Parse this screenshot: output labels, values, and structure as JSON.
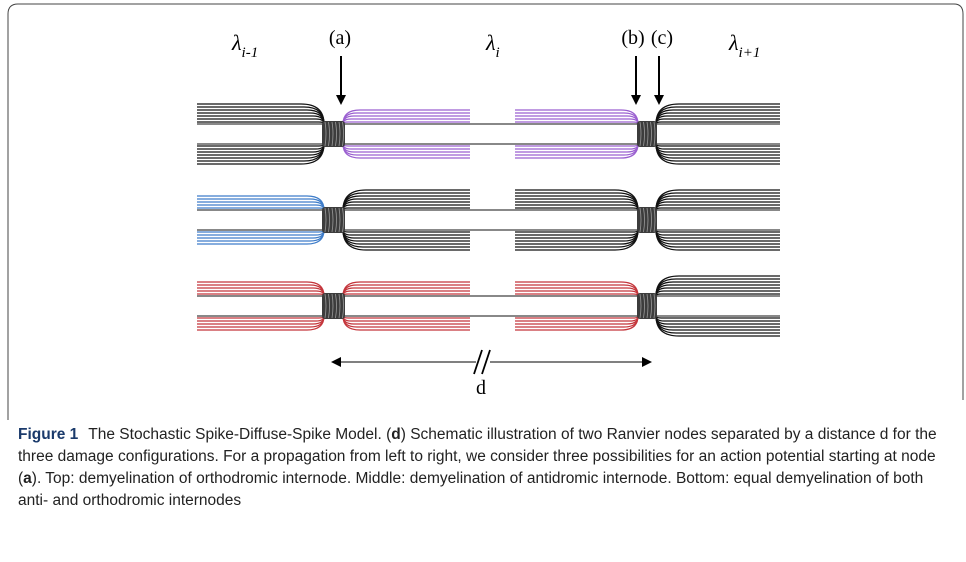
{
  "figure": {
    "node_labels": [
      "(a)",
      "(b)",
      "(c)"
    ],
    "lambdas": [
      {
        "symbol": "λ",
        "subscript": "i-1"
      },
      {
        "symbol": "λ",
        "subscript": "i"
      },
      {
        "symbol": "λ",
        "subscript": "i+1"
      }
    ],
    "distance_label": "d"
  },
  "caption": {
    "label": "Figure 1",
    "parts": [
      "The Stochastic Spike-Diffuse-Spike Model. (",
      "d",
      ") Schematic illustration of two Ranvier nodes separated by a distance d for the three damage configurations. For a propagation from left to right, we consider three possibilities for an action potential starting at node (",
      "a",
      "). Top: demyelination of orthodromic internode. Middle: demyelination of antidromic internode. Bottom: equal demyelination of both anti- and orthodromic internodes"
    ]
  }
}
